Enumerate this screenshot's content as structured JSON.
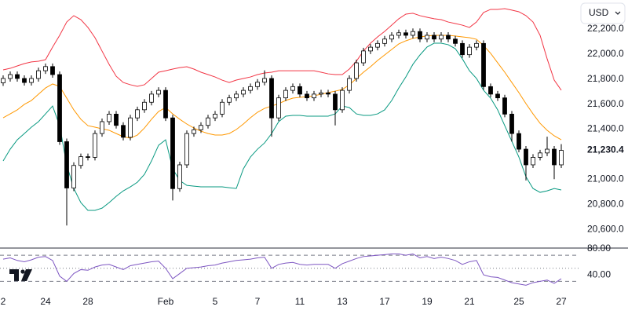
{
  "ui": {
    "currency": "USD"
  },
  "chart_data": [
    {
      "type": "candlestick",
      "categories": [
        "2",
        null,
        null,
        null,
        null,
        null,
        "24",
        null,
        null,
        null,
        null,
        null,
        "28",
        null,
        null,
        null,
        null,
        null,
        null,
        null,
        null,
        null,
        null,
        "Feb",
        null,
        null,
        null,
        null,
        null,
        null,
        "5",
        null,
        null,
        null,
        null,
        null,
        "7",
        null,
        null,
        null,
        null,
        null,
        "11",
        null,
        null,
        null,
        null,
        null,
        "13",
        null,
        null,
        null,
        null,
        null,
        "17",
        null,
        null,
        null,
        null,
        null,
        "19",
        null,
        null,
        null,
        null,
        null,
        "21",
        null,
        null,
        null,
        null,
        null,
        null,
        "25",
        null,
        null,
        null,
        null,
        null,
        "27"
      ],
      "open": [
        21770,
        21805,
        21836,
        21805,
        21773,
        21805,
        21867,
        21900,
        21836,
        21300,
        20930,
        21110,
        21180,
        21175,
        21365,
        21460,
        21520,
        21430,
        21335,
        21490,
        21555,
        21615,
        21680,
        21710,
        21490,
        20925,
        21115,
        21365,
        21395,
        21430,
        21490,
        21520,
        21615,
        21650,
        21680,
        21710,
        21740,
        21775,
        21805,
        21490,
        21650,
        21710,
        21740,
        21680,
        21650,
        21680,
        21690,
        21680,
        21555,
        21710,
        21805,
        21930,
        22025,
        22055,
        22085,
        22120,
        22150,
        22170,
        22150,
        22180,
        22120,
        22150,
        22120,
        22150,
        22120,
        22085,
        21995,
        22055,
        22085,
        21740,
        21680,
        21650,
        21520,
        21365,
        21240,
        21115,
        21175,
        21210,
        21240,
        21115
      ],
      "high": [
        21830,
        21861,
        21861,
        21830,
        21830,
        21892,
        21925,
        21925,
        21861,
        21325,
        21135,
        21205,
        21205,
        21390,
        21485,
        21545,
        21545,
        21455,
        21515,
        21580,
        21640,
        21705,
        21735,
        21735,
        21515,
        21140,
        21390,
        21420,
        21455,
        21515,
        21545,
        21640,
        21675,
        21705,
        21735,
        21765,
        21800,
        21870,
        21830,
        21675,
        21735,
        21765,
        21765,
        21705,
        21705,
        21715,
        21715,
        21705,
        21735,
        21830,
        21955,
        22050,
        22080,
        22110,
        22145,
        22175,
        22195,
        22195,
        22205,
        22205,
        22175,
        22175,
        22175,
        22175,
        22145,
        22110,
        22080,
        22110,
        22110,
        21765,
        21705,
        21675,
        21545,
        21390,
        21265,
        21200,
        21235,
        21340,
        21265,
        21280
      ],
      "low": [
        21745,
        21780,
        21780,
        21748,
        21748,
        21780,
        21842,
        21811,
        21275,
        20630,
        20905,
        21085,
        21150,
        21150,
        21340,
        21435,
        21405,
        21310,
        21310,
        21465,
        21530,
        21590,
        21655,
        21465,
        20830,
        20900,
        21090,
        21340,
        21370,
        21405,
        21465,
        21495,
        21590,
        21625,
        21655,
        21685,
        21715,
        21750,
        21340,
        21465,
        21625,
        21685,
        21655,
        21625,
        21625,
        21655,
        21655,
        21430,
        21530,
        21685,
        21780,
        21905,
        22000,
        22030,
        22060,
        22095,
        22125,
        22125,
        22125,
        22095,
        22095,
        22095,
        22095,
        22095,
        22060,
        21970,
        21970,
        22030,
        21715,
        21655,
        21625,
        21495,
        21300,
        21215,
        20990,
        21090,
        21150,
        21185,
        21000,
        21090
      ],
      "close": [
        21805,
        21836,
        21805,
        21773,
        21805,
        21867,
        21900,
        21836,
        21300,
        20930,
        21110,
        21180,
        21175,
        21365,
        21460,
        21520,
        21430,
        21335,
        21490,
        21555,
        21615,
        21680,
        21710,
        21490,
        20925,
        21115,
        21365,
        21395,
        21430,
        21490,
        21520,
        21615,
        21650,
        21680,
        21710,
        21740,
        21775,
        21805,
        21490,
        21650,
        21710,
        21740,
        21680,
        21650,
        21680,
        21690,
        21680,
        21555,
        21710,
        21805,
        21930,
        22025,
        22055,
        22085,
        22120,
        22150,
        22170,
        22150,
        22180,
        22120,
        22150,
        22120,
        22150,
        22120,
        22085,
        21995,
        22055,
        22085,
        21740,
        21680,
        21650,
        21520,
        21365,
        21240,
        21115,
        21175,
        21210,
        21240,
        21115,
        21230.4
      ],
      "up_color": "#ffffff",
      "down_color": "#000000",
      "wick_color": "#000000",
      "bands": [
        {
          "color": "#f23645",
          "values": [
            21874,
            21886,
            21905,
            21924,
            21937,
            21943,
            21955,
            22056,
            22150,
            22256,
            22307,
            22275,
            22213,
            22131,
            22024,
            21918,
            21823,
            21773,
            21755,
            21742,
            21755,
            21805,
            21855,
            21867,
            21880,
            21892,
            21899,
            21880,
            21855,
            21836,
            21817,
            21792,
            21773,
            21792,
            21805,
            21817,
            21836,
            21849,
            21855,
            21867,
            21867,
            21867,
            21867,
            21867,
            21867,
            21855,
            21842,
            21836,
            21836,
            21880,
            21943,
            22024,
            22087,
            22137,
            22181,
            22231,
            22282,
            22319,
            22326,
            22307,
            22294,
            22282,
            22275,
            22256,
            22244,
            22231,
            22213,
            22256,
            22332,
            22357,
            22357,
            22363,
            22351,
            22338,
            22307,
            22256,
            22150,
            21962,
            21792,
            21711
          ]
        },
        {
          "color": "#ff9800",
          "values": [
            21491,
            21522,
            21554,
            21598,
            21629,
            21679,
            21729,
            21761,
            21742,
            21648,
            21554,
            21479,
            21428,
            21416,
            21403,
            21391,
            21365,
            21340,
            21328,
            21353,
            21409,
            21479,
            21541,
            21573,
            21522,
            21479,
            21441,
            21409,
            21384,
            21365,
            21353,
            21353,
            21365,
            21397,
            21441,
            21491,
            21535,
            21566,
            21585,
            21604,
            21629,
            21648,
            21654,
            21660,
            21667,
            21679,
            21692,
            21704,
            21717,
            21754,
            21805,
            21855,
            21899,
            21949,
            21993,
            22037,
            22081,
            22106,
            22125,
            22137,
            22144,
            22150,
            22150,
            22150,
            22144,
            22137,
            22131,
            22118,
            22068,
            22006,
            21930,
            21855,
            21773,
            21692,
            21604,
            21522,
            21447,
            21391,
            21347,
            21315
          ]
        },
        {
          "color": "#089981",
          "values": [
            21146,
            21240,
            21315,
            21365,
            21416,
            21460,
            21522,
            21585,
            21428,
            21114,
            20926,
            20813,
            20751,
            20751,
            20769,
            20813,
            20863,
            20907,
            20939,
            20976,
            21039,
            21146,
            21271,
            21315,
            21083,
            20989,
            20951,
            20945,
            20939,
            20939,
            20939,
            20939,
            20932,
            20926,
            21083,
            21177,
            21240,
            21290,
            21365,
            21460,
            21504,
            21510,
            21510,
            21504,
            21504,
            21504,
            21504,
            21522,
            21585,
            21573,
            21522,
            21510,
            21510,
            21522,
            21554,
            21629,
            21729,
            21817,
            21918,
            21993,
            22056,
            22087,
            22087,
            22075,
            22043,
            21962,
            21867,
            21805,
            21711,
            21648,
            21554,
            21428,
            21303,
            21177,
            21020,
            20926,
            20895,
            20907,
            20926,
            20914
          ]
        }
      ],
      "ylim": [
        20450,
        22432
      ],
      "yticks": [
        {
          "value": 22200,
          "label": "22,200.0"
        },
        {
          "value": 22000,
          "label": "22,000.0"
        },
        {
          "value": 21800,
          "label": "21,800.0"
        },
        {
          "value": 21600,
          "label": "21,600.0"
        },
        {
          "value": 21400,
          "label": "21,400.0"
        },
        {
          "value": 21000,
          "label": "21,000.0"
        },
        {
          "value": 20800,
          "label": "20,800.0"
        },
        {
          "value": 20600,
          "label": "20,600.0"
        }
      ],
      "last_price": {
        "value": 21230.4,
        "label": "21,230.4"
      },
      "grid": false
    },
    {
      "type": "line",
      "values": [
        64,
        66,
        62,
        60,
        63,
        67,
        68,
        62,
        38,
        30,
        42,
        48,
        47,
        52,
        55,
        56,
        52,
        48,
        54,
        56,
        58,
        60,
        61,
        50,
        34,
        42,
        50,
        51,
        52,
        54,
        55,
        58,
        60,
        62,
        63,
        64,
        66,
        67,
        50,
        56,
        58,
        59,
        56,
        55,
        56,
        56,
        56,
        50,
        57,
        61,
        65,
        68,
        69,
        70,
        71,
        72,
        72,
        70,
        72,
        66,
        68,
        65,
        67,
        65,
        62,
        56,
        60,
        62,
        40,
        37,
        36,
        32,
        28,
        26,
        24,
        28,
        30,
        32,
        27,
        34
      ],
      "color": "#7e57c2",
      "ylim": [
        -20,
        81
      ],
      "yticks": [
        {
          "value": 80,
          "label": "80.00"
        },
        {
          "value": 40,
          "label": "40.00"
        }
      ],
      "levels": [
        70,
        50,
        30
      ]
    }
  ]
}
